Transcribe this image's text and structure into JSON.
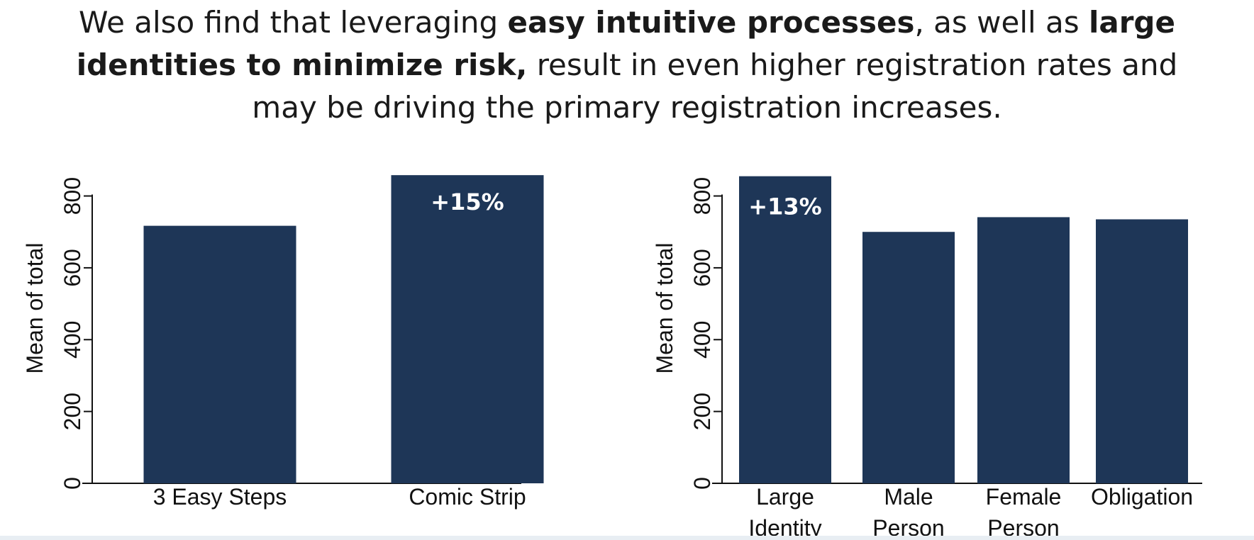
{
  "headline": {
    "line1_a": "We also find that leveraging ",
    "line1_b": "easy intuitive processes",
    "line1_c": ", as well as ",
    "line1_d": "large",
    "line2_a": "identities to minimize risk,",
    "line2_b": " result in even higher registration rates and",
    "line3": "may be driving the primary registration increases."
  },
  "colors": {
    "bar": "#1e3657",
    "axis": "#111111",
    "text": "#1a1a1a"
  },
  "chart_data": [
    {
      "type": "bar",
      "categories": [
        "3 Easy Steps",
        "Comic Strip"
      ],
      "values": [
        717,
        858
      ],
      "ylabel": "Mean of total",
      "yticks": [
        0,
        200,
        400,
        600,
        800
      ],
      "ylim": [
        0,
        880
      ],
      "annotations": [
        {
          "category": "Comic Strip",
          "text": "+15%"
        }
      ]
    },
    {
      "type": "bar",
      "categories": [
        "Large Identity",
        "Male Person",
        "Female Person",
        "Obligation"
      ],
      "values": [
        855,
        700,
        741,
        735
      ],
      "ylabel": "Mean of total",
      "yticks": [
        0,
        200,
        400,
        600,
        800
      ],
      "ylim": [
        0,
        880
      ],
      "annotations": [
        {
          "category": "Large Identity",
          "text": "+13%"
        }
      ]
    }
  ]
}
